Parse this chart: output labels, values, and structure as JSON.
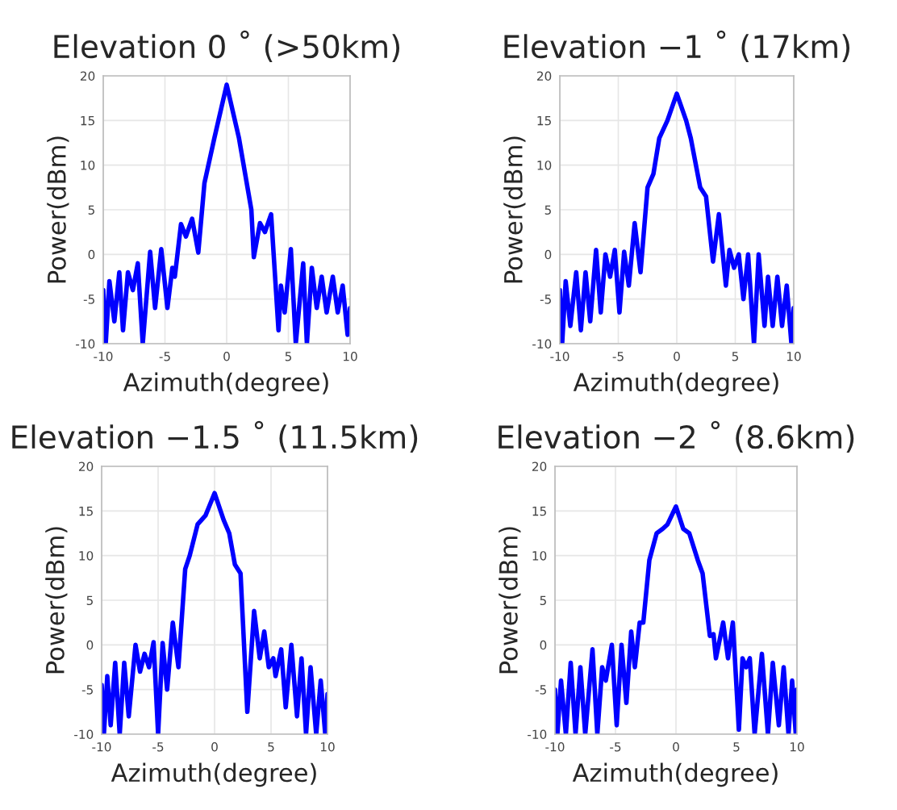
{
  "chart_data": [
    {
      "type": "line",
      "title": "Elevation 0 ˚ (>50km)",
      "xlabel": "Azimuth(degree)",
      "ylabel": "Power(dBm)",
      "xlim": [
        -10,
        10
      ],
      "ylim": [
        -10,
        20
      ],
      "xticks": [
        -10,
        -5,
        0,
        5,
        10
      ],
      "yticks": [
        -10,
        -5,
        0,
        5,
        10,
        15,
        20
      ],
      "grid": true,
      "line_style": "solid",
      "series": [
        {
          "color": "#0000ff",
          "x": [
            -10,
            -9.8,
            -9.5,
            -9.1,
            -8.7,
            -8.4,
            -8,
            -7.6,
            -7.2,
            -6.8,
            -6.2,
            -5.8,
            -5.3,
            -4.8,
            -4.4,
            -4.2,
            -3.7,
            -3.3,
            -2.8,
            -2.3,
            -1.8,
            -1.0,
            0,
            1.0,
            2,
            2.2,
            2.7,
            3.1,
            3.6,
            4.2,
            4.4,
            4.7,
            5.2,
            5.6,
            6.2,
            6.5,
            6.9,
            7.3,
            7.7,
            8.1,
            8.6,
            9.0,
            9.4,
            9.8,
            10
          ],
          "values": [
            -4,
            -10,
            -3,
            -7.5,
            -2,
            -8.5,
            -2,
            -4,
            -1,
            -10,
            0.3,
            -6,
            0.6,
            -6,
            -1.5,
            -2.5,
            3.4,
            2,
            4,
            0.2,
            8,
            13,
            19,
            13,
            5,
            -0.3,
            3.5,
            2.5,
            4.5,
            -8.5,
            -3.5,
            -6.5,
            0.6,
            -10,
            -1,
            -10,
            -1.5,
            -6,
            -2.5,
            -6.5,
            -2.5,
            -6.5,
            -3.5,
            -9,
            -6
          ]
        }
      ]
    },
    {
      "type": "line",
      "title": "Elevation −1 ˚ (17km)",
      "xlabel": "Azimuth(degree)",
      "ylabel": "Power(dBm)",
      "xlim": [
        -10,
        10
      ],
      "ylim": [
        -10,
        20
      ],
      "xticks": [
        -10,
        -5,
        0,
        5,
        10
      ],
      "yticks": [
        -10,
        -5,
        0,
        5,
        10,
        15,
        20
      ],
      "grid": true,
      "line_style": "solid",
      "series": [
        {
          "color": "#0000ff",
          "x": [
            -10,
            -9.8,
            -9.5,
            -9.1,
            -8.6,
            -8.2,
            -7.8,
            -7.4,
            -6.9,
            -6.5,
            -6.1,
            -5.7,
            -5.3,
            -4.9,
            -4.5,
            -4.1,
            -3.6,
            -3.1,
            -2.5,
            -2.0,
            -1.5,
            -0.8,
            0,
            0.8,
            1.2,
            2,
            2.5,
            3.1,
            3.6,
            4.2,
            4.5,
            4.9,
            5.3,
            5.7,
            6.1,
            6.6,
            7.0,
            7.5,
            7.8,
            8.2,
            8.6,
            9.0,
            9.4,
            9.8,
            10
          ],
          "values": [
            -4,
            -10,
            -3,
            -8,
            -2,
            -8.5,
            -2,
            -7.5,
            0.5,
            -6.5,
            0,
            -2.5,
            0.5,
            -6.5,
            0.3,
            -3.5,
            3.5,
            -2,
            7.5,
            9,
            13,
            15,
            18,
            15,
            13,
            7.5,
            6.5,
            -0.8,
            4.5,
            -3.5,
            0.5,
            -1.5,
            0,
            -5,
            0,
            -10,
            0,
            -8,
            -2.5,
            -8,
            -2.5,
            -8,
            -3.5,
            -10,
            -6
          ]
        }
      ]
    },
    {
      "type": "line",
      "title": "Elevation −1.5 ˚ (11.5km)",
      "xlabel": "Azimuth(degree)",
      "ylabel": "Power(dBm)",
      "xlim": [
        -10,
        10
      ],
      "ylim": [
        -10,
        20
      ],
      "xticks": [
        -10,
        -5,
        0,
        5,
        10
      ],
      "yticks": [
        -10,
        -5,
        0,
        5,
        10,
        15,
        20
      ],
      "grid": true,
      "line_style": "solid",
      "series": [
        {
          "color": "#0000ff",
          "x": [
            -10,
            -9.8,
            -9.5,
            -9.2,
            -8.8,
            -8.4,
            -8.0,
            -7.6,
            -7.0,
            -6.6,
            -6.2,
            -5.8,
            -5.4,
            -5.0,
            -4.6,
            -4.2,
            -3.7,
            -3.2,
            -2.6,
            -2.2,
            -1.5,
            -0.8,
            0,
            0.8,
            1.3,
            1.8,
            2.3,
            2.9,
            3.5,
            4.0,
            4.4,
            4.8,
            5.2,
            5.4,
            5.9,
            6.3,
            6.8,
            7.3,
            7.7,
            8.1,
            8.5,
            9.0,
            9.4,
            9.8,
            10
          ],
          "values": [
            -4.5,
            -10,
            -3.5,
            -9,
            -2,
            -10,
            -2,
            -8,
            0,
            -3,
            -1,
            -2.5,
            0.3,
            -10,
            0.2,
            -5,
            2.5,
            -2.5,
            8.5,
            10,
            13.5,
            14.5,
            17,
            14,
            12.5,
            9,
            8,
            -7.5,
            3.8,
            -1.5,
            1.5,
            -2.5,
            -1.5,
            -3.5,
            -0.5,
            -7,
            0,
            -8,
            -1.5,
            -10,
            -2.5,
            -10,
            -4,
            -10,
            -5.5
          ]
        }
      ]
    },
    {
      "type": "line",
      "title": "Elevation −2 ˚ (8.6km)",
      "xlabel": "Azimuth(degree)",
      "ylabel": "Power(dBm)",
      "xlim": [
        -10,
        10
      ],
      "ylim": [
        -10,
        20
      ],
      "xticks": [
        -10,
        -5,
        0,
        5,
        10
      ],
      "yticks": [
        -10,
        -5,
        0,
        5,
        10,
        15,
        20
      ],
      "grid": true,
      "line_style": "solid",
      "series": [
        {
          "color": "#0000ff",
          "x": [
            -10,
            -9.8,
            -9.5,
            -9.1,
            -8.7,
            -8.3,
            -7.9,
            -7.5,
            -6.9,
            -6.5,
            -6.1,
            -5.8,
            -5.3,
            -4.9,
            -4.5,
            -4.1,
            -3.7,
            -3.4,
            -3.0,
            -2.7,
            -2.2,
            -1.6,
            -1.1,
            -0.7,
            0,
            0.6,
            1.1,
            1.8,
            2.2,
            2.8,
            3.1,
            3.3,
            3.9,
            4.3,
            4.7,
            5.2,
            5.5,
            5.8,
            6.1,
            6.5,
            7.1,
            7.6,
            8.0,
            8.5,
            8.9,
            9.3,
            9.6,
            9.9,
            10
          ],
          "values": [
            -5,
            -10,
            -4,
            -10,
            -2,
            -10,
            -2.5,
            -10,
            -0.5,
            -10,
            -2.5,
            -4,
            0,
            -9,
            0,
            -6.5,
            1.5,
            -2.5,
            2.5,
            2.5,
            9.5,
            12.5,
            13,
            13.5,
            15.5,
            13,
            12.5,
            9.5,
            8,
            1,
            1.2,
            -1.5,
            2.5,
            -1.5,
            2.5,
            -9.5,
            -1.5,
            -2.5,
            -1.5,
            -10,
            -1,
            -10,
            -2,
            -9,
            -2.5,
            -10,
            -4,
            -10,
            -5
          ]
        }
      ]
    }
  ]
}
